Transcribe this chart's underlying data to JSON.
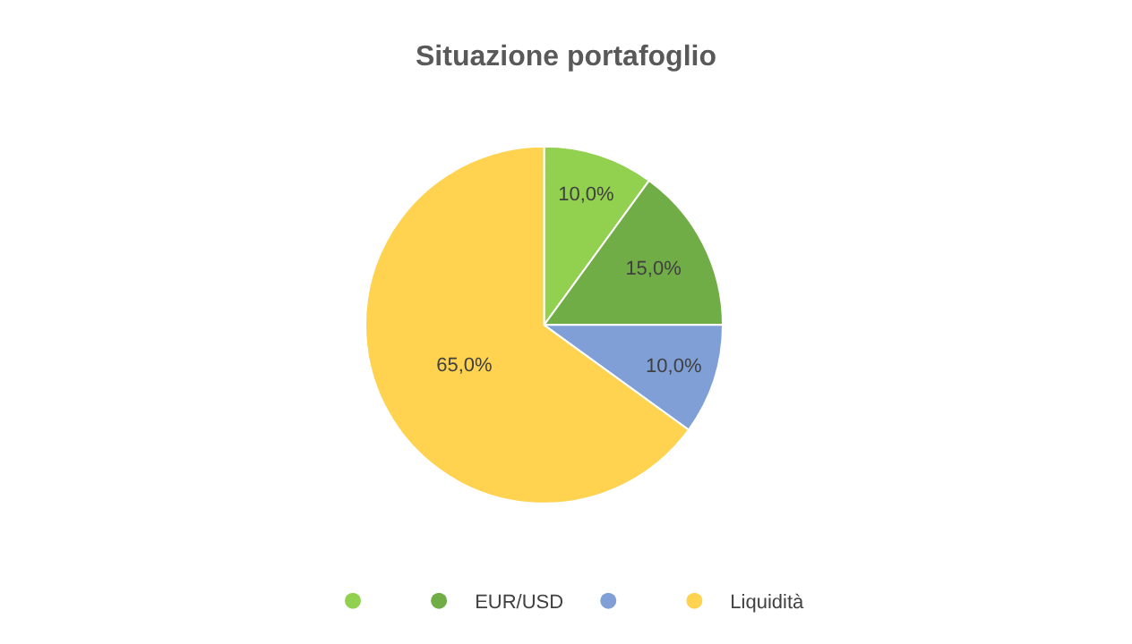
{
  "chart_data": {
    "type": "pie",
    "title": "Situazione portafoglio",
    "categories": [
      null,
      "EUR/USD",
      null,
      "Liquidità"
    ],
    "values": [
      10,
      15,
      10,
      65
    ],
    "colors": [
      "#92d050",
      "#70ad47",
      "#7f9fd6",
      "#ffd24f"
    ],
    "value_labels": [
      "10,0%",
      "15,0%",
      "10,0%",
      "65,0%"
    ],
    "legend": "bottom"
  }
}
